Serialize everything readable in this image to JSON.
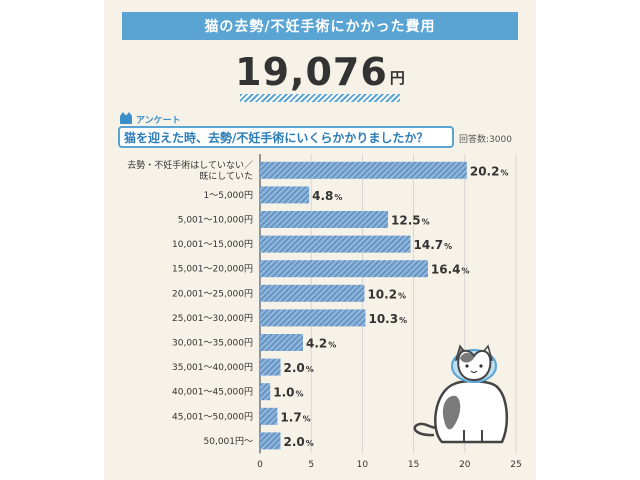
{
  "header": {
    "title": "猫の去勢/不妊手術にかかった費用",
    "total_value": "19,076",
    "total_unit": "円"
  },
  "survey": {
    "tag": "アンケート",
    "question": "猫を迎えた時、去勢/不妊手術にいくらかかりましたか？",
    "respondents": "回答数:3000"
  },
  "colors": {
    "accent": "#5aa4d4",
    "bar_fill": "#8fb5d9",
    "bar_stripe": "#5f8fc2",
    "panel_bg": "#f7f2e8"
  },
  "chart_data": {
    "type": "bar",
    "orientation": "horizontal",
    "categories": [
      "去勢・不妊手術はしていない／既にしていた",
      "1～5,000円",
      "5,001～10,000円",
      "10,001～15,000円",
      "15,001～20,000円",
      "20,001～25,000円",
      "25,001～30,000円",
      "30,001～35,000円",
      "35,001～40,000円",
      "40,001～45,000円",
      "45,001～50,000円",
      "50,001円～"
    ],
    "category_lines": [
      [
        "去勢・不妊手術はしていない／",
        "既にしていた"
      ],
      [
        "1～5,000円"
      ],
      [
        "5,001～10,000円"
      ],
      [
        "10,001～15,000円"
      ],
      [
        "15,001～20,000円"
      ],
      [
        "20,001～25,000円"
      ],
      [
        "25,001～30,000円"
      ],
      [
        "30,001～35,000円"
      ],
      [
        "35,001～40,000円"
      ],
      [
        "40,001～45,000円"
      ],
      [
        "45,001～50,000円"
      ],
      [
        "50,001円～"
      ]
    ],
    "values": [
      20.2,
      4.8,
      12.5,
      14.7,
      16.4,
      10.2,
      10.3,
      4.2,
      2.0,
      1.0,
      1.7,
      2.0
    ],
    "value_labels": [
      "20.2",
      "4.8",
      "12.5",
      "14.7",
      "16.4",
      "10.2",
      "10.3",
      "4.2",
      "2.0",
      "1.0",
      "1.7",
      "2.0"
    ],
    "value_unit": "%",
    "xlim": [
      0,
      25
    ],
    "xticks": [
      0,
      5,
      10,
      15,
      20,
      25
    ],
    "grid": true,
    "title": "",
    "xlabel": "",
    "ylabel": ""
  }
}
